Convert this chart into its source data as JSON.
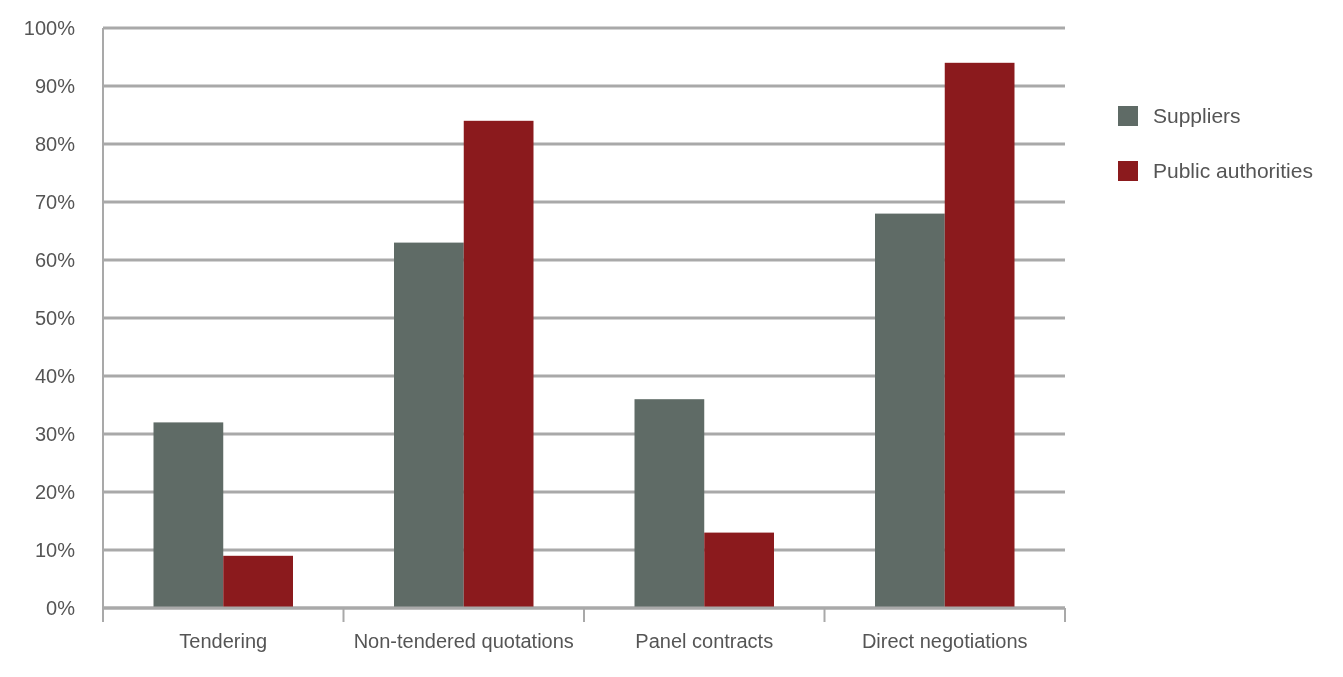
{
  "chart_data": {
    "type": "bar",
    "categories": [
      "Tendering",
      "Non-tendered quotations",
      "Panel contracts",
      "Direct negotiations"
    ],
    "series": [
      {
        "name": "Suppliers",
        "color": "#5f6b66",
        "values": [
          32,
          63,
          36,
          68
        ]
      },
      {
        "name": "Public authorities",
        "color": "#8b1a1d",
        "values": [
          9,
          84,
          13,
          94
        ]
      }
    ],
    "ylim": [
      0,
      100
    ],
    "yticks": [
      {
        "value": 0,
        "label": "0%"
      },
      {
        "value": 10,
        "label": "10%"
      },
      {
        "value": 20,
        "label": "20%"
      },
      {
        "value": 30,
        "label": "30%"
      },
      {
        "value": 40,
        "label": "40%"
      },
      {
        "value": 50,
        "label": "50%"
      },
      {
        "value": 60,
        "label": "60%"
      },
      {
        "value": 70,
        "label": "70%"
      },
      {
        "value": 80,
        "label": "80%"
      },
      {
        "value": 90,
        "label": "90%"
      },
      {
        "value": 100,
        "label": "100%"
      }
    ],
    "grid": "y",
    "legend": "right"
  }
}
